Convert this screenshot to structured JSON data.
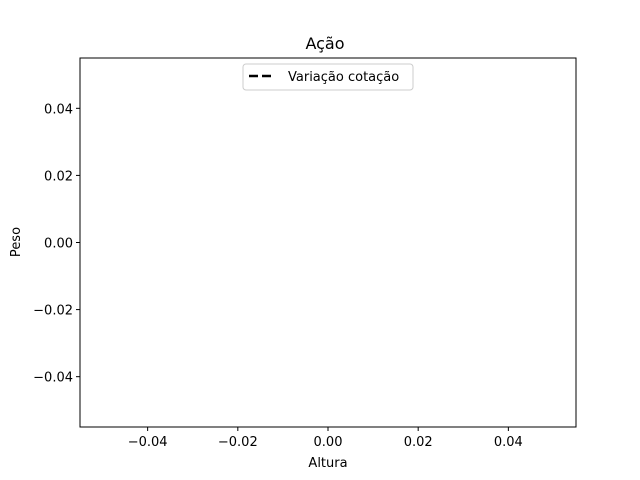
{
  "chart_data": {
    "type": "line",
    "title": "Ação",
    "xlabel": "Altura",
    "ylabel": "Peso",
    "xlim": [
      -0.055,
      0.055
    ],
    "ylim": [
      -0.055,
      0.055
    ],
    "x_ticks": [
      -0.04,
      -0.02,
      0.0,
      0.02,
      0.04
    ],
    "x_tick_labels": [
      "−0.04",
      "−0.02",
      "0.00",
      "0.02",
      "0.04"
    ],
    "y_ticks": [
      0.04,
      0.02,
      0.0,
      -0.02,
      -0.04
    ],
    "y_tick_labels": [
      "0.04",
      "0.02",
      "0.00",
      "−0.02",
      "−0.04"
    ],
    "grid": false,
    "legend_position": "upper center",
    "series": [
      {
        "name": "Variação cotação",
        "x": [],
        "y": [],
        "color": "#000000",
        "linestyle": "dashed"
      }
    ]
  }
}
